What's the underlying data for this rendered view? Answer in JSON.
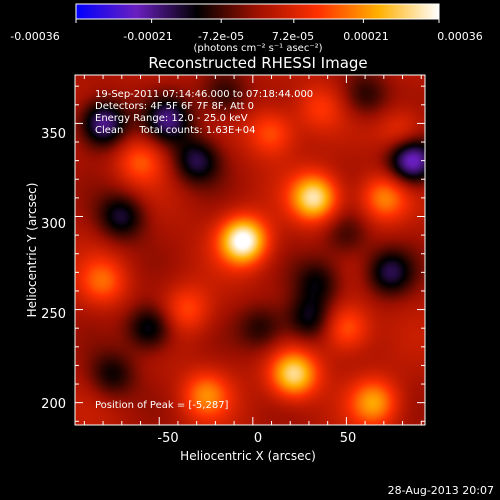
{
  "chart_data": {
    "type": "heatmap",
    "title": "Reconstructed RHESSI Image",
    "xlabel": "Heliocentric X (arcsec)",
    "ylabel": "Heliocentric Y (arcsec)",
    "xlim": [
      -95,
      92
    ],
    "ylim": [
      188,
      376
    ],
    "x_ticks": [
      -50,
      0,
      50
    ],
    "y_ticks": [
      200,
      250,
      300,
      350
    ],
    "colorbar": {
      "min": -0.00036,
      "max": 0.00036,
      "tick_labels": [
        "-0.00036",
        "-0.00021",
        "-7.2e-05",
        "7.2e-05",
        "0.00021",
        "0.00036"
      ],
      "unit_label": "(photons cm⁻² s⁻¹ asec⁻²)",
      "colors": [
        "#0000ff",
        "#6a1fbf",
        "#000000",
        "#a01000",
        "#ff3000",
        "#ffb000",
        "#ffffff"
      ]
    },
    "info_lines": [
      "19-Sep-2011 07:14:46.000 to 07:18:44.000",
      "Detectors: 4F 5F 6F 7F 8F, Att 0",
      "Energy Range: 12.0 - 25.0 keV",
      "Clean     Total counts: 1.63E+04"
    ],
    "peak_label": "Position of Peak = [-5,287]",
    "sources": [
      {
        "x": -5,
        "y": 287,
        "value": 0.00036
      },
      {
        "x": 33,
        "y": 310,
        "value": 0.0003
      },
      {
        "x": 22,
        "y": 215,
        "value": 0.00029
      },
      {
        "x": 65,
        "y": 200,
        "value": 0.0002
      },
      {
        "x": -25,
        "y": 204,
        "value": 0.00017
      },
      {
        "x": 70,
        "y": 310,
        "value": 0.00018
      },
      {
        "x": 50,
        "y": 240,
        "value": 0.00016
      },
      {
        "x": -80,
        "y": 265,
        "value": 0.00014
      },
      {
        "x": -60,
        "y": 330,
        "value": 0.00013
      },
      {
        "x": 10,
        "y": 345,
        "value": 0.00014
      },
      {
        "x": -35,
        "y": 250,
        "value": 0.00012
      },
      {
        "x": 80,
        "y": 345,
        "value": 0.00011
      },
      {
        "x": 35,
        "y": 358,
        "value": 0.0001
      },
      {
        "x": -80,
        "y": 350,
        "value": -0.00025
      },
      {
        "x": -45,
        "y": 352,
        "value": -0.0002
      },
      {
        "x": -30,
        "y": 330,
        "value": -0.00018
      },
      {
        "x": 85,
        "y": 330,
        "value": -0.0003
      },
      {
        "x": -70,
        "y": 300,
        "value": -0.00017
      },
      {
        "x": -55,
        "y": 240,
        "value": -0.00018
      },
      {
        "x": 5,
        "y": 240,
        "value": -0.00012
      },
      {
        "x": 35,
        "y": 265,
        "value": -0.00013
      },
      {
        "x": 73,
        "y": 270,
        "value": -0.00018
      },
      {
        "x": 30,
        "y": 245,
        "value": -0.00016
      },
      {
        "x": -75,
        "y": 215,
        "value": -0.00013
      },
      {
        "x": 50,
        "y": 290,
        "value": -0.0001
      },
      {
        "x": 60,
        "y": 365,
        "value": -0.00012
      },
      {
        "x": -15,
        "y": 365,
        "value": -0.00012
      }
    ]
  },
  "footer": {
    "date": "28-Aug-2013 20:07"
  }
}
